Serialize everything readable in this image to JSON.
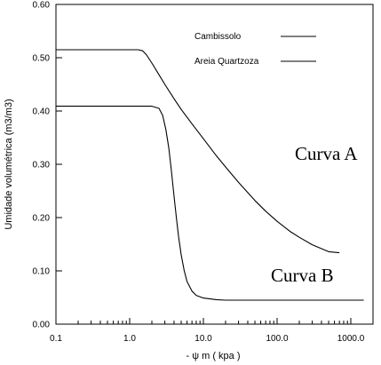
{
  "chart_data": {
    "type": "line",
    "xscale": "log",
    "xlabel": "- ψ m ( kpa )",
    "ylabel": "Umidade volumétrica (m3/m3)",
    "xlim": [
      0.1,
      2000
    ],
    "ylim": [
      0,
      0.6
    ],
    "grid": false,
    "legend_position": "top-right",
    "x_tick_labels": [
      "0.1",
      "1.0",
      "10.0",
      "100.0",
      "1000.0"
    ],
    "y_tick_labels": [
      "0.00",
      "0.10",
      "0.20",
      "0.30",
      "0.40",
      "0.50",
      "0.60"
    ],
    "series": [
      {
        "name": "Cambissolo",
        "x": [
          0.1,
          1.0,
          1.3,
          1.5,
          1.7,
          2,
          2.5,
          3,
          4,
          5,
          7,
          10,
          15,
          20,
          30,
          50,
          70,
          100,
          150,
          200,
          300,
          500,
          700
        ],
        "y": [
          0.515,
          0.515,
          0.515,
          0.513,
          0.505,
          0.49,
          0.468,
          0.45,
          0.423,
          0.403,
          0.376,
          0.348,
          0.316,
          0.295,
          0.266,
          0.232,
          0.212,
          0.193,
          0.174,
          0.163,
          0.149,
          0.136,
          0.134
        ]
      },
      {
        "name": "Areia Quartzoza",
        "x": [
          0.1,
          1.0,
          2.0,
          2.5,
          2.8,
          3.1,
          3.4,
          3.7,
          4.0,
          4.3,
          4.6,
          5.0,
          5.5,
          6.0,
          7.0,
          8.0,
          10,
          15,
          20,
          30,
          50,
          100,
          200,
          500,
          1000,
          1500
        ],
        "y": [
          0.409,
          0.409,
          0.409,
          0.405,
          0.392,
          0.365,
          0.33,
          0.285,
          0.24,
          0.2,
          0.165,
          0.13,
          0.1,
          0.08,
          0.062,
          0.054,
          0.049,
          0.046,
          0.045,
          0.045,
          0.045,
          0.045,
          0.045,
          0.045,
          0.045,
          0.045
        ]
      }
    ],
    "annotations": [
      "Curva A",
      "Curva B"
    ]
  }
}
